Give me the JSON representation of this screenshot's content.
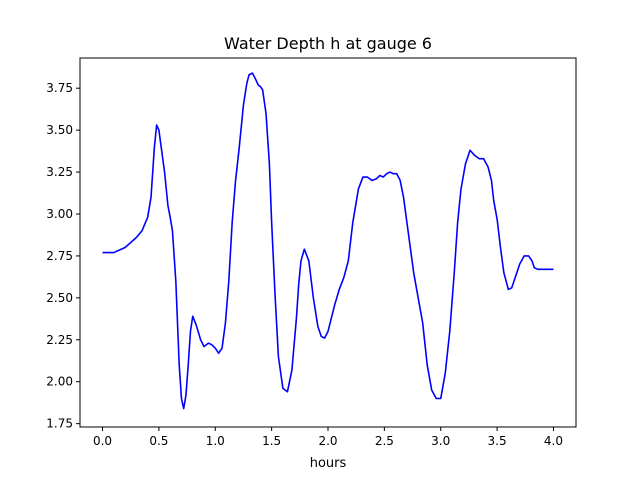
{
  "chart_data": {
    "type": "line",
    "title": "Water Depth h at gauge 6",
    "xlabel": "hours",
    "ylabel": "",
    "xlim": [
      -0.2,
      4.2
    ],
    "ylim": [
      1.73,
      3.93
    ],
    "xticks": [
      0.0,
      0.5,
      1.0,
      1.5,
      2.0,
      2.5,
      3.0,
      3.5,
      4.0
    ],
    "xtick_labels": [
      "0.0",
      "0.5",
      "1.0",
      "1.5",
      "2.0",
      "2.5",
      "3.0",
      "3.5",
      "4.0"
    ],
    "yticks": [
      1.75,
      2.0,
      2.25,
      2.5,
      2.75,
      3.0,
      3.25,
      3.5,
      3.75
    ],
    "ytick_labels": [
      "1.75",
      "2.00",
      "2.25",
      "2.50",
      "2.75",
      "3.00",
      "3.25",
      "3.50",
      "3.75"
    ],
    "grid": false,
    "series": [
      {
        "color": "#0000ff",
        "x": [
          0.0,
          0.1,
          0.2,
          0.3,
          0.35,
          0.4,
          0.43,
          0.46,
          0.48,
          0.5,
          0.52,
          0.55,
          0.58,
          0.6,
          0.62,
          0.65,
          0.68,
          0.7,
          0.72,
          0.74,
          0.76,
          0.78,
          0.8,
          0.83,
          0.87,
          0.9,
          0.94,
          0.97,
          1.0,
          1.03,
          1.06,
          1.09,
          1.12,
          1.15,
          1.18,
          1.21,
          1.25,
          1.28,
          1.3,
          1.33,
          1.36,
          1.38,
          1.4,
          1.42,
          1.45,
          1.48,
          1.5,
          1.53,
          1.56,
          1.6,
          1.64,
          1.68,
          1.72,
          1.74,
          1.76,
          1.79,
          1.83,
          1.87,
          1.91,
          1.94,
          1.97,
          2.0,
          2.03,
          2.06,
          2.1,
          2.14,
          2.18,
          2.22,
          2.27,
          2.31,
          2.35,
          2.39,
          2.43,
          2.46,
          2.49,
          2.52,
          2.55,
          2.58,
          2.61,
          2.64,
          2.67,
          2.7,
          2.73,
          2.76,
          2.8,
          2.84,
          2.88,
          2.92,
          2.96,
          3.0,
          3.04,
          3.08,
          3.12,
          3.15,
          3.18,
          3.22,
          3.26,
          3.3,
          3.34,
          3.38,
          3.42,
          3.45,
          3.47,
          3.5,
          3.53,
          3.56,
          3.6,
          3.63,
          3.66,
          3.7,
          3.74,
          3.78,
          3.81,
          3.83,
          3.86,
          3.9,
          3.93,
          3.96,
          4.0
        ],
        "y": [
          2.77,
          2.77,
          2.8,
          2.86,
          2.9,
          2.98,
          3.1,
          3.4,
          3.53,
          3.5,
          3.4,
          3.25,
          3.05,
          2.98,
          2.9,
          2.6,
          2.1,
          1.9,
          1.84,
          1.92,
          2.1,
          2.3,
          2.39,
          2.34,
          2.25,
          2.21,
          2.23,
          2.22,
          2.2,
          2.17,
          2.2,
          2.35,
          2.6,
          2.95,
          3.2,
          3.38,
          3.65,
          3.78,
          3.83,
          3.84,
          3.8,
          3.77,
          3.76,
          3.74,
          3.6,
          3.3,
          2.95,
          2.52,
          2.15,
          1.96,
          1.94,
          2.07,
          2.38,
          2.58,
          2.72,
          2.79,
          2.72,
          2.5,
          2.33,
          2.27,
          2.26,
          2.3,
          2.38,
          2.46,
          2.55,
          2.62,
          2.72,
          2.95,
          3.15,
          3.22,
          3.22,
          3.2,
          3.21,
          3.23,
          3.22,
          3.24,
          3.25,
          3.24,
          3.24,
          3.2,
          3.1,
          2.95,
          2.8,
          2.65,
          2.5,
          2.35,
          2.1,
          1.95,
          1.9,
          1.9,
          2.05,
          2.3,
          2.65,
          2.95,
          3.15,
          3.3,
          3.38,
          3.35,
          3.33,
          3.33,
          3.28,
          3.2,
          3.08,
          2.97,
          2.8,
          2.65,
          2.55,
          2.56,
          2.62,
          2.7,
          2.75,
          2.75,
          2.72,
          2.68,
          2.67,
          2.67,
          2.67,
          2.67,
          2.67
        ]
      }
    ]
  }
}
